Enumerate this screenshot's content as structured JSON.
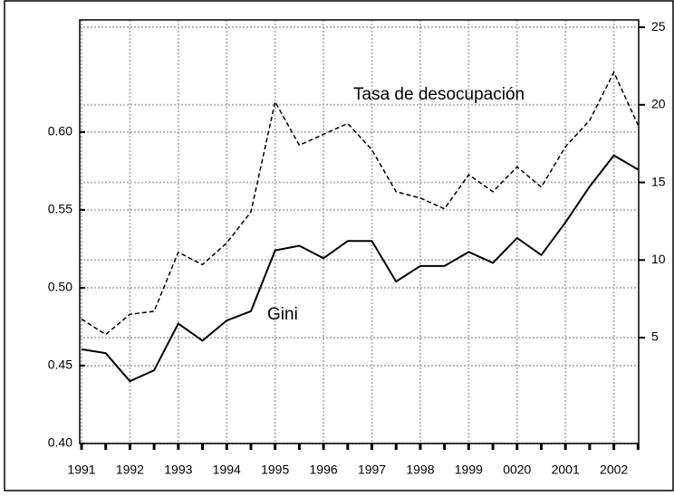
{
  "chart_data": {
    "type": "line",
    "categories": [
      "1991",
      null,
      "1992",
      null,
      "1993",
      null,
      "1994",
      null,
      "1995",
      null,
      "1996",
      null,
      "1997",
      null,
      "1998",
      null,
      "1999",
      null,
      "0020",
      null,
      "2001",
      null,
      "2002",
      null
    ],
    "series": [
      {
        "name": "Gini",
        "color": "#000000",
        "line_style": "solid",
        "values": [
          0.4605,
          0.458,
          0.44,
          0.447,
          0.477,
          0.466,
          0.479,
          0.485,
          0.524,
          0.527,
          0.519,
          0.53,
          0.53,
          0.504,
          0.514,
          0.514,
          0.523,
          0.516,
          0.532,
          0.521,
          0.542,
          0.565,
          0.585,
          0.576
        ]
      },
      {
        "name": "Tasa de desocupación",
        "color": "#000000",
        "line_style": "dashed",
        "axis": "y2",
        "values": [
          6.2,
          5.2,
          6.5,
          6.7,
          10.5,
          9.7,
          11.1,
          13.1,
          20.2,
          17.4,
          18.1,
          18.8,
          17.1,
          14.4,
          14.0,
          13.3,
          15.5,
          14.4,
          16.0,
          14.7,
          17.3,
          19.0,
          22.1,
          18.7
        ]
      }
    ],
    "ylim": [
      0.4,
      0.672
    ],
    "yticks": [
      {
        "value": 0.4,
        "label": "0.40"
      },
      0.45,
      {
        "value": 0.5,
        "label": "0.50"
      },
      0.55,
      {
        "value": 0.6,
        "label": "0.60"
      }
    ],
    "y2lim": [
      -1.82,
      25.47
    ],
    "y2ticks": [
      5,
      10,
      15,
      20,
      25
    ],
    "grid": true
  }
}
